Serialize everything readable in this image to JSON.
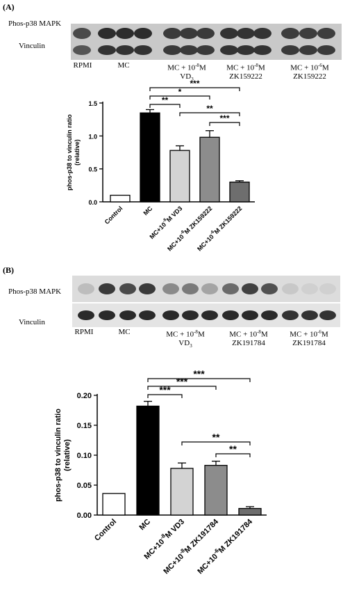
{
  "panel_a": {
    "label": "(A)",
    "blot": {
      "rows": [
        "Phos-p38 MAPK",
        "Vinculin"
      ],
      "lanes": [
        {
          "l1": "RPMI",
          "l2": ""
        },
        {
          "l1": "MC",
          "l2": ""
        },
        {
          "l1": "MC + 10",
          "sup": "-8",
          "l1b": "M",
          "l2": "VD",
          "sub": "3"
        },
        {
          "l1": "MC + 10",
          "sup": "-8",
          "l1b": "M",
          "l2": "ZK159222"
        },
        {
          "l1": "MC + 10",
          "sup": "-6",
          "l1b": "M",
          "l2": "ZK159222"
        }
      ]
    }
  },
  "panel_b": {
    "label": "(B)",
    "blot": {
      "rows": [
        "Phos-p38 MAPK",
        "Vinculin"
      ],
      "lanes": [
        {
          "l1": "RPMI",
          "l2": ""
        },
        {
          "l1": "MC",
          "l2": ""
        },
        {
          "l1": "MC + 10",
          "sup": "-8",
          "l1b": "M",
          "l2": "VD",
          "sub": "3"
        },
        {
          "l1": "MC + 10",
          "sup": "-8",
          "l1b": "M",
          "l2": "ZK191784"
        },
        {
          "l1": "MC + 10",
          "sup": "-6",
          "l1b": "M",
          "l2": "ZK191784"
        }
      ]
    }
  },
  "chart_data": [
    {
      "type": "bar",
      "ylabel": "phos-p38 to vinculin ratio (relative)",
      "ylabel_lines": [
        "phos-p38 to vinculin ratio",
        "(relative)"
      ],
      "ylim": [
        0,
        1.5
      ],
      "yticks": [
        "0.0",
        "0.5",
        "1.0",
        "1.5"
      ],
      "categories": [
        "Control",
        "MC",
        "MC+10-8M VD3",
        "MC+10-8M ZK159222",
        "MC+10-6M ZK159222"
      ],
      "tick_labels": [
        {
          "pre": "Control"
        },
        {
          "pre": "MC"
        },
        {
          "pre": "MC+10",
          "sup": "-8",
          "post": "M VD3"
        },
        {
          "pre": "MC+10",
          "sup": "-8",
          "post": "M ZK159222"
        },
        {
          "pre": "MC+10",
          "sup": "-6",
          "post": "M ZK159222"
        }
      ],
      "values": [
        0.1,
        1.35,
        0.78,
        0.98,
        0.3
      ],
      "errors": [
        0,
        0.05,
        0.07,
        0.1,
        0.02
      ],
      "colors": [
        "#ffffff",
        "#000000",
        "#d3d3d3",
        "#8c8c8c",
        "#6e6e6e"
      ],
      "significance": [
        {
          "from": 1,
          "to": 4,
          "label": "***"
        },
        {
          "from": 1,
          "to": 3,
          "label": "*"
        },
        {
          "from": 1,
          "to": 2,
          "label": "**"
        },
        {
          "from": 2,
          "to": 4,
          "label": "**"
        },
        {
          "from": 3,
          "to": 4,
          "label": "***"
        }
      ]
    },
    {
      "type": "bar",
      "ylabel": "phos-p38 to vinculin ratio (relative)",
      "ylabel_lines": [
        "phos-p38 to vinculin ratio",
        "(relative)"
      ],
      "ylim": [
        0,
        0.2
      ],
      "yticks": [
        "0.00",
        "0.05",
        "0.10",
        "0.15",
        "0.20"
      ],
      "categories": [
        "Control",
        "MC",
        "MC+10-8M VD3",
        "MC+10-8M ZK191784",
        "MC+10-6M ZK191784"
      ],
      "tick_labels": [
        {
          "pre": "Control"
        },
        {
          "pre": "MC"
        },
        {
          "pre": "MC+10",
          "sup": "-8",
          "post": "M VD3"
        },
        {
          "pre": "MC+10",
          "sup": "-8",
          "post": "M ZK191784"
        },
        {
          "pre": "MC+10",
          "sup": "-6",
          "post": "M ZK191784"
        }
      ],
      "values": [
        0.036,
        0.182,
        0.078,
        0.083,
        0.011
      ],
      "errors": [
        0,
        0.008,
        0.009,
        0.007,
        0.003
      ],
      "colors": [
        "#ffffff",
        "#000000",
        "#d3d3d3",
        "#8c8c8c",
        "#6e6e6e"
      ],
      "significance": [
        {
          "from": 1,
          "to": 4,
          "label": "***"
        },
        {
          "from": 1,
          "to": 3,
          "label": "***"
        },
        {
          "from": 1,
          "to": 2,
          "label": "***"
        },
        {
          "from": 2,
          "to": 4,
          "label": "**"
        },
        {
          "from": 3,
          "to": 4,
          "label": "**"
        }
      ]
    }
  ]
}
